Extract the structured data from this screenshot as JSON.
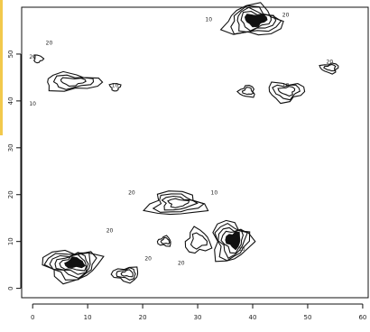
{
  "chart_data": {
    "type": "contour",
    "title": "",
    "xlabel": "",
    "ylabel": "",
    "xlim": [
      -2,
      61
    ],
    "ylim": [
      -2,
      60
    ],
    "x_ticks": [
      0,
      10,
      20,
      30,
      40,
      50,
      60
    ],
    "y_ticks": [
      0,
      10,
      20,
      30,
      40,
      50
    ],
    "grid": false,
    "legend": "none",
    "clusters": [
      {
        "id": "c1",
        "center": [
          40,
          57
        ],
        "rx": 5,
        "ry": 3.2,
        "levels": 6
      },
      {
        "id": "c2",
        "center": [
          7,
          44
        ],
        "rx": 5,
        "ry": 1.8,
        "levels": 3
      },
      {
        "id": "c3",
        "center": [
          46,
          42
        ],
        "rx": 3.2,
        "ry": 2,
        "levels": 3
      },
      {
        "id": "c4",
        "center": [
          54,
          47
        ],
        "rx": 1.6,
        "ry": 1,
        "levels": 2
      },
      {
        "id": "c5",
        "center": [
          39,
          42
        ],
        "rx": 1.4,
        "ry": 1.2,
        "levels": 2
      },
      {
        "id": "c6",
        "center": [
          26,
          18
        ],
        "rx": 5,
        "ry": 2.5,
        "levels": 4
      },
      {
        "id": "c7",
        "center": [
          36,
          10
        ],
        "rx": 3.4,
        "ry": 4.2,
        "levels": 6
      },
      {
        "id": "c8",
        "center": [
          7,
          5
        ],
        "rx": 5,
        "ry": 3.2,
        "levels": 7
      },
      {
        "id": "c9",
        "center": [
          17,
          3
        ],
        "rx": 2.4,
        "ry": 1.5,
        "levels": 3
      },
      {
        "id": "c10",
        "center": [
          24,
          10
        ],
        "rx": 1.2,
        "ry": 1,
        "levels": 2
      },
      {
        "id": "c11",
        "center": [
          30,
          10
        ],
        "rx": 2.2,
        "ry": 2.5,
        "levels": 2
      },
      {
        "id": "c12",
        "center": [
          1,
          49
        ],
        "rx": 0.8,
        "ry": 0.8,
        "levels": 1
      },
      {
        "id": "c13",
        "center": [
          15,
          43
        ],
        "rx": 0.9,
        "ry": 0.8,
        "levels": 1
      }
    ],
    "level_labels": [
      {
        "text": "10",
        "x": 32,
        "y": 57
      },
      {
        "text": "20",
        "x": 46,
        "y": 58
      },
      {
        "text": "20",
        "x": 3,
        "y": 52
      },
      {
        "text": "20",
        "x": 0,
        "y": 49
      },
      {
        "text": "10",
        "x": 15,
        "y": 43
      },
      {
        "text": "10",
        "x": 0,
        "y": 39
      },
      {
        "text": "20",
        "x": 18,
        "y": 20
      },
      {
        "text": "10",
        "x": 33,
        "y": 20
      },
      {
        "text": "20",
        "x": 14,
        "y": 12
      },
      {
        "text": "20",
        "x": 21,
        "y": 6
      },
      {
        "text": "20",
        "x": 27,
        "y": 5
      },
      {
        "text": "10",
        "x": 38,
        "y": 8
      },
      {
        "text": "10",
        "x": 46,
        "y": 43
      },
      {
        "text": "20",
        "x": 54,
        "y": 48
      }
    ]
  }
}
